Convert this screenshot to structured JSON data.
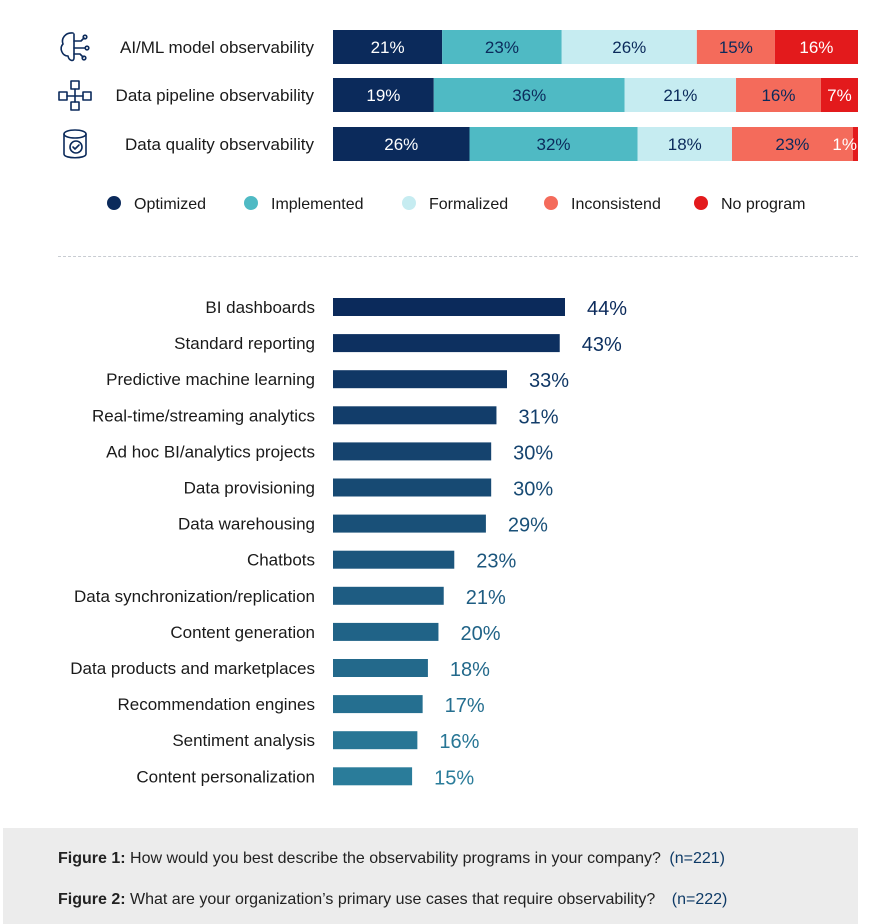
{
  "colors": {
    "optimized": "#0b2a5b",
    "implemented": "#4fbac4",
    "formalized": "#c6ecf1",
    "inconsistent": "#f46b5b",
    "no_program": "#e31a1c",
    "bars2_top": "#0b2a5b",
    "bars2_bottom": "#2a7c9a"
  },
  "chart_data": [
    {
      "type": "bar",
      "orientation": "horizontal",
      "stacked": true,
      "categories": [
        "AI/ML model observability",
        "Data pipeline observability",
        "Data quality observability"
      ],
      "category_icons": [
        "brain-circuit-icon",
        "pipeline-nodes-icon",
        "database-check-icon"
      ],
      "series": [
        {
          "name": "Optimized",
          "values": [
            21,
            19,
            26
          ],
          "labels": [
            "21%",
            "19%",
            "26%"
          ]
        },
        {
          "name": "Implemented",
          "values": [
            23,
            36,
            32
          ],
          "labels": [
            "23%",
            "36%",
            "32%"
          ]
        },
        {
          "name": "Formalized",
          "values": [
            26,
            21,
            18
          ],
          "labels": [
            "26%",
            "21%",
            "18%"
          ]
        },
        {
          "name": "Inconsistend",
          "values": [
            15,
            16,
            23
          ],
          "labels": [
            "15%",
            "16%",
            "23%"
          ]
        },
        {
          "name": "No program",
          "values": [
            16,
            7,
            1
          ],
          "labels": [
            "16%",
            "7%",
            "1%"
          ]
        }
      ],
      "legend": "bottom",
      "grid": false
    },
    {
      "type": "bar",
      "orientation": "horizontal",
      "categories": [
        "BI dashboards",
        "Standard reporting",
        "Predictive machine learning",
        "Real-time/streaming analytics",
        "Ad hoc BI/analytics projects",
        "Data provisioning",
        "Data warehousing",
        "Chatbots",
        "Data synchronization/replication",
        "Content generation",
        "Data products and marketplaces",
        "Recommendation engines",
        "Sentiment analysis",
        "Content personalization"
      ],
      "values": [
        44,
        43,
        33,
        31,
        30,
        30,
        29,
        23,
        21,
        20,
        18,
        17,
        16,
        15
      ],
      "labels": [
        "44%",
        "43%",
        "33%",
        "31%",
        "30%",
        "30%",
        "29%",
        "23%",
        "21%",
        "20%",
        "18%",
        "17%",
        "16%",
        "15%"
      ],
      "xlim": [
        0,
        44
      ],
      "grid": false
    }
  ],
  "caption": {
    "figure1_label": "Figure 1:",
    "figure1_text": " How would you best describe the observability programs in your company?",
    "figure1_n": "(n=221)",
    "figure2_label": "Figure 2:",
    "figure2_text": " What are your organization’s primary use cases that require observability?",
    "figure2_n": "(n=222)"
  }
}
